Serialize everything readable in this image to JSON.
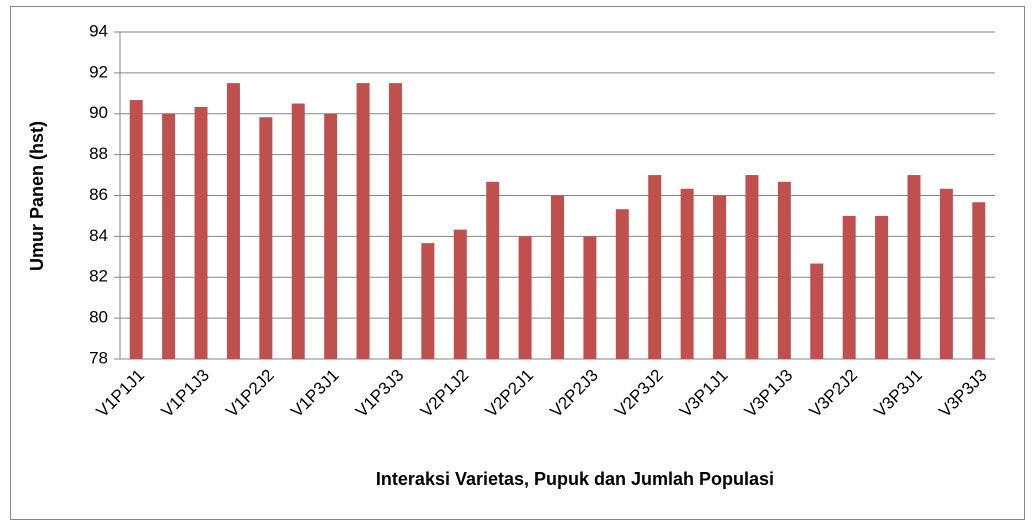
{
  "chart_data": {
    "type": "bar",
    "x_label": "Interaksi Varietas, Pupuk dan Jumlah Populasi",
    "y_label": "Umur Panen (hst)",
    "categories": [
      "V1P1J1",
      null,
      "V1P1J3",
      null,
      "V1P2J2",
      null,
      "V1P3J1",
      null,
      "V1P3J3",
      null,
      "V2P1J2",
      null,
      "V2P2J1",
      null,
      "V2P2J3",
      null,
      "V2P3J2",
      null,
      "V3P1J1",
      null,
      "V3P1J3",
      null,
      "V3P2J2",
      null,
      "V3P3J1",
      null,
      "V3P3J3"
    ],
    "values": [
      90.67,
      90,
      90.33,
      91.5,
      89.83,
      90.5,
      90,
      91.5,
      91.5,
      83.67,
      84.33,
      86.67,
      84,
      86,
      84,
      85.33,
      87,
      86.33,
      86,
      87,
      86.67,
      82.67,
      85,
      85,
      87,
      86.33,
      85.67
    ],
    "color": "#c0504d",
    "ylim": [
      78,
      94
    ],
    "yticks": [
      78,
      80,
      82,
      84,
      86,
      88,
      90,
      92,
      94
    ],
    "grid": true
  }
}
